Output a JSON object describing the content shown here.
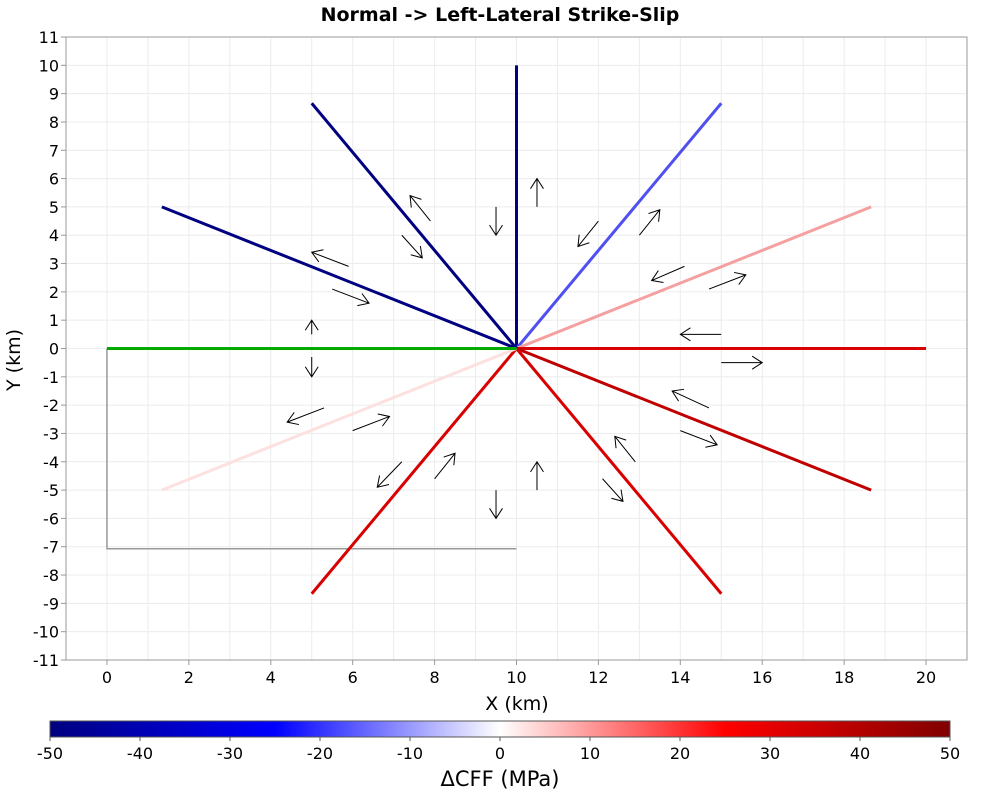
{
  "chart_data": {
    "type": "line",
    "title": "Normal -> Left-Lateral Strike-Slip",
    "xlabel": "X (km)",
    "ylabel": "Y (km)",
    "xlim": [
      -1,
      21
    ],
    "ylim": [
      -11,
      11
    ],
    "x_ticks": [
      0,
      2,
      4,
      6,
      8,
      10,
      12,
      14,
      16,
      18,
      20
    ],
    "y_ticks": [
      11,
      10,
      9,
      8,
      7,
      6,
      5,
      4,
      3,
      2,
      1,
      0,
      -1,
      -2,
      -3,
      -4,
      -5,
      -6,
      -7,
      -8,
      -9,
      -10,
      -11
    ],
    "grid": true,
    "source_fault": {
      "color": "#00aa00",
      "x": [
        0,
        10
      ],
      "y": [
        0,
        0
      ]
    },
    "fault_outline": {
      "color": "#999999",
      "x": [
        0,
        0,
        10
      ],
      "y": [
        0,
        -7.07,
        -7.07
      ]
    },
    "receiver_faults": [
      {
        "azimuth": 0,
        "x": [
          10,
          10
        ],
        "y": [
          0,
          10
        ],
        "color": "#000080"
      },
      {
        "azimuth": 30,
        "x": [
          10,
          15
        ],
        "y": [
          0,
          8.66
        ],
        "color": "#5050f0"
      },
      {
        "azimuth": 60,
        "x": [
          10,
          18.66
        ],
        "y": [
          0,
          5
        ],
        "color": "#f5a0a0"
      },
      {
        "azimuth": 90,
        "x": [
          10,
          20
        ],
        "y": [
          0,
          0
        ],
        "color": "#d80000"
      },
      {
        "azimuth": 120,
        "x": [
          10,
          18.66
        ],
        "y": [
          0,
          -5
        ],
        "color": "#c00000"
      },
      {
        "azimuth": 150,
        "x": [
          10,
          15
        ],
        "y": [
          0,
          -8.66
        ],
        "color": "#d80000"
      },
      {
        "azimuth": 210,
        "x": [
          10,
          5
        ],
        "y": [
          0,
          -8.66
        ],
        "color": "#d80000"
      },
      {
        "azimuth": 240,
        "x": [
          10,
          1.34
        ],
        "y": [
          0,
          -5
        ],
        "color": "#fde0e0"
      },
      {
        "azimuth": 300,
        "x": [
          10,
          1.34
        ],
        "y": [
          0,
          5
        ],
        "color": "#000080"
      },
      {
        "azimuth": 330,
        "x": [
          10,
          5
        ],
        "y": [
          0,
          8.66
        ],
        "color": "#000080"
      }
    ],
    "slip_arrows": [
      {
        "x": [
          10.5,
          10.5
        ],
        "y": [
          5.0,
          6.0
        ]
      },
      {
        "x": [
          9.5,
          9.5
        ],
        "y": [
          5.0,
          4.0
        ]
      },
      {
        "x": [
          12.0,
          11.5
        ],
        "y": [
          4.5,
          3.6
        ]
      },
      {
        "x": [
          13.0,
          13.5
        ],
        "y": [
          4.0,
          4.9
        ]
      },
      {
        "x": [
          14.1,
          13.3
        ],
        "y": [
          2.9,
          2.4
        ]
      },
      {
        "x": [
          14.7,
          15.6
        ],
        "y": [
          2.1,
          2.6
        ]
      },
      {
        "x": [
          15.0,
          14.0
        ],
        "y": [
          0.5,
          0.5
        ]
      },
      {
        "x": [
          15.0,
          16.0
        ],
        "y": [
          -0.5,
          -0.5
        ]
      },
      {
        "x": [
          14.7,
          13.8
        ],
        "y": [
          -2.1,
          -1.5
        ]
      },
      {
        "x": [
          14.0,
          14.9
        ],
        "y": [
          -2.9,
          -3.4
        ]
      },
      {
        "x": [
          12.9,
          12.4
        ],
        "y": [
          -4.0,
          -3.1
        ]
      },
      {
        "x": [
          12.1,
          12.6
        ],
        "y": [
          -4.6,
          -5.4
        ]
      },
      {
        "x": [
          10.5,
          10.5
        ],
        "y": [
          -5.0,
          -4.0
        ]
      },
      {
        "x": [
          9.5,
          9.5
        ],
        "y": [
          -5.0,
          -6.0
        ]
      },
      {
        "x": [
          8.0,
          8.5
        ],
        "y": [
          -4.6,
          -3.7
        ]
      },
      {
        "x": [
          7.2,
          6.6
        ],
        "y": [
          -4.0,
          -4.9
        ]
      },
      {
        "x": [
          6.0,
          6.9
        ],
        "y": [
          -2.9,
          -2.4
        ]
      },
      {
        "x": [
          5.3,
          4.4
        ],
        "y": [
          -2.1,
          -2.6
        ]
      },
      {
        "x": [
          5.0,
          5.0
        ],
        "y": [
          0.5,
          1.0
        ]
      },
      {
        "x": [
          5.0,
          5.0
        ],
        "y": [
          -0.3,
          -1.0
        ]
      },
      {
        "x": [
          5.5,
          6.4
        ],
        "y": [
          2.1,
          1.6
        ]
      },
      {
        "x": [
          5.9,
          5.0
        ],
        "y": [
          2.9,
          3.4
        ]
      },
      {
        "x": [
          7.2,
          7.7
        ],
        "y": [
          4.0,
          3.2
        ]
      },
      {
        "x": [
          7.9,
          7.4
        ],
        "y": [
          4.5,
          5.4
        ]
      }
    ],
    "colorbar": {
      "label": "ΔCFF (MPa)",
      "min": -50,
      "max": 50,
      "ticks": [
        -50,
        -40,
        -30,
        -20,
        -10,
        0,
        10,
        20,
        30,
        40,
        50
      ],
      "colors": [
        "#000080",
        "#0000ff",
        "#ffffff",
        "#ff0000",
        "#800000"
      ]
    }
  }
}
